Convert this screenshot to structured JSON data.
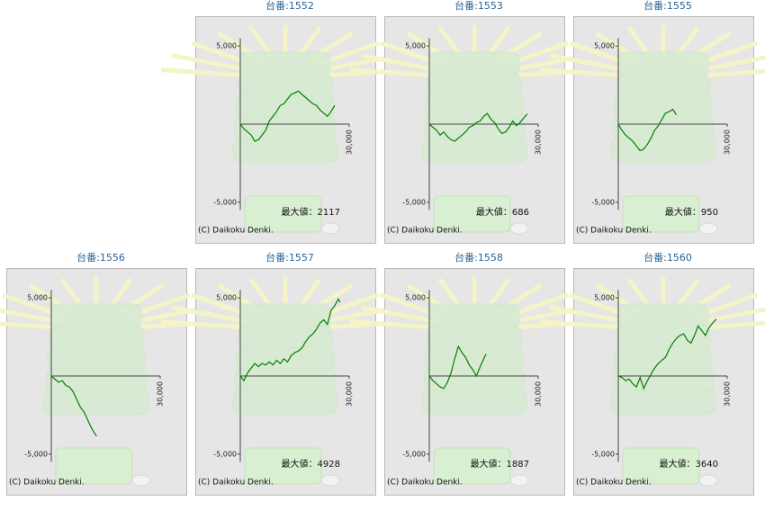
{
  "chart_data": [
    {
      "type": "line",
      "title": "台番:1552",
      "annotation": "最大値：2117",
      "copyright": "(C) Daikoku Denki.",
      "xlim": [
        0,
        30000
      ],
      "xticks": [
        {
          "value": 30000,
          "label": "30,000"
        }
      ],
      "ylim": [
        -5500,
        5500
      ],
      "yticks": [
        {
          "value": 5000,
          "label": "5,000"
        },
        {
          "value": -5000,
          "label": "-5,000"
        }
      ],
      "x": [
        0,
        1000,
        2000,
        3000,
        4000,
        5000,
        6000,
        7000,
        8000,
        9000,
        10000,
        11000,
        12000,
        13000,
        14000,
        15000,
        16000,
        17000,
        18000,
        19000,
        20000,
        21000,
        22000,
        23000,
        24000,
        25000,
        26000
      ],
      "series": [
        {
          "color": "#008000",
          "values": [
            0,
            -300,
            -500,
            -700,
            -1100,
            -1000,
            -700,
            -400,
            200,
            500,
            800,
            1200,
            1300,
            1600,
            1900,
            2000,
            2117,
            1900,
            1700,
            1500,
            1300,
            1200,
            900,
            700,
            500,
            800,
            1200
          ]
        }
      ]
    },
    {
      "type": "line",
      "title": "台番:1553",
      "annotation": "最大値：686",
      "copyright": "(C) Daikoku Denki.",
      "xlim": [
        0,
        30000
      ],
      "xticks": [
        {
          "value": 30000,
          "label": "30,000"
        }
      ],
      "ylim": [
        -5500,
        5500
      ],
      "yticks": [
        {
          "value": 5000,
          "label": "5,000"
        },
        {
          "value": -5000,
          "label": "-5,000"
        }
      ],
      "x": [
        0,
        1000,
        2000,
        3000,
        4000,
        5000,
        6000,
        7000,
        8000,
        9000,
        10000,
        11000,
        12000,
        13000,
        14000,
        15000,
        16000,
        17000,
        18000,
        19000,
        20000,
        21000,
        22000,
        23000,
        24000,
        25000,
        26000,
        27000
      ],
      "series": [
        {
          "color": "#008000",
          "values": [
            0,
            -200,
            -400,
            -700,
            -500,
            -800,
            -1000,
            -1100,
            -900,
            -700,
            -500,
            -200,
            -100,
            100,
            200,
            500,
            686,
            300,
            100,
            -300,
            -600,
            -500,
            -200,
            200,
            -100,
            100,
            400,
            650
          ]
        }
      ]
    },
    {
      "type": "line",
      "title": "台番:1555",
      "annotation": "最大値：950",
      "copyright": "(C) Daikoku Denki.",
      "xlim": [
        0,
        30000
      ],
      "xticks": [
        {
          "value": 30000,
          "label": "30,000"
        }
      ],
      "ylim": [
        -5500,
        5500
      ],
      "yticks": [
        {
          "value": 5000,
          "label": "5,000"
        },
        {
          "value": -5000,
          "label": "-5,000"
        }
      ],
      "x": [
        0,
        1000,
        2000,
        3000,
        4000,
        5000,
        6000,
        7000,
        8000,
        9000,
        10000,
        11000,
        12000,
        13000,
        14000,
        15000,
        16000
      ],
      "series": [
        {
          "color": "#008000",
          "values": [
            0,
            -400,
            -700,
            -900,
            -1100,
            -1400,
            -1700,
            -1600,
            -1300,
            -900,
            -400,
            -100,
            300,
            700,
            800,
            950,
            600
          ]
        }
      ]
    },
    {
      "type": "line",
      "title": "台番:1556",
      "annotation": "",
      "copyright": "(C) Daikoku Denki.",
      "xlim": [
        0,
        30000
      ],
      "xticks": [
        {
          "value": 30000,
          "label": "30,000"
        }
      ],
      "ylim": [
        -5500,
        5500
      ],
      "yticks": [
        {
          "value": 5000,
          "label": "5,000"
        },
        {
          "value": -5000,
          "label": "-5,000"
        }
      ],
      "x": [
        0,
        1000,
        2000,
        3000,
        4000,
        5000,
        6000,
        7000,
        8000,
        9000,
        10000,
        11000,
        12000,
        12500
      ],
      "series": [
        {
          "color": "#008000",
          "values": [
            0,
            -200,
            -400,
            -300,
            -600,
            -700,
            -1000,
            -1500,
            -2000,
            -2300,
            -2800,
            -3300,
            -3700,
            -3850
          ]
        }
      ]
    },
    {
      "type": "line",
      "title": "台番:1557",
      "annotation": "最大値：4928",
      "copyright": "(C) Daikoku Denki.",
      "xlim": [
        0,
        30000
      ],
      "xticks": [
        {
          "value": 30000,
          "label": "30,000"
        }
      ],
      "ylim": [
        -5500,
        5500
      ],
      "yticks": [
        {
          "value": 5000,
          "label": "5,000"
        },
        {
          "value": -5000,
          "label": "-5,000"
        }
      ],
      "x": [
        0,
        1000,
        2000,
        3000,
        4000,
        5000,
        6000,
        7000,
        8000,
        9000,
        10000,
        11000,
        12000,
        13000,
        14000,
        15000,
        16000,
        17000,
        18000,
        19000,
        20000,
        21000,
        22000,
        23000,
        24000,
        25000,
        26000,
        27000,
        27500
      ],
      "series": [
        {
          "color": "#008000",
          "values": [
            0,
            -300,
            200,
            500,
            800,
            600,
            800,
            700,
            900,
            700,
            1000,
            800,
            1100,
            900,
            1300,
            1500,
            1600,
            1800,
            2200,
            2500,
            2700,
            3000,
            3400,
            3600,
            3300,
            4200,
            4500,
            4928,
            4700
          ]
        }
      ]
    },
    {
      "type": "line",
      "title": "台番:1558",
      "annotation": "最大値：1887",
      "copyright": "(C) Daikoku Denki.",
      "xlim": [
        0,
        30000
      ],
      "xticks": [
        {
          "value": 30000,
          "label": "30,000"
        }
      ],
      "ylim": [
        -5500,
        5500
      ],
      "yticks": [
        {
          "value": 5000,
          "label": "5,000"
        },
        {
          "value": -5000,
          "label": "-5,000"
        }
      ],
      "x": [
        0,
        1000,
        2000,
        3000,
        4000,
        5000,
        6000,
        7000,
        8000,
        9000,
        10000,
        11000,
        12000,
        13000,
        14000,
        15000,
        15600
      ],
      "series": [
        {
          "color": "#008000",
          "values": [
            0,
            -300,
            -500,
            -700,
            -800,
            -400,
            200,
            1100,
            1887,
            1500,
            1200,
            700,
            400,
            0,
            600,
            1100,
            1400
          ]
        }
      ]
    },
    {
      "type": "line",
      "title": "台番:1560",
      "annotation": "最大値：3640",
      "copyright": "(C) Daikoku Denki.",
      "xlim": [
        0,
        30000
      ],
      "xticks": [
        {
          "value": 30000,
          "label": "30,000"
        }
      ],
      "ylim": [
        -5500,
        5500
      ],
      "yticks": [
        {
          "value": 5000,
          "label": "5,000"
        },
        {
          "value": -5000,
          "label": "-5,000"
        }
      ],
      "x": [
        0,
        1000,
        2000,
        3000,
        4000,
        5000,
        6000,
        7000,
        8000,
        9000,
        10000,
        11000,
        12000,
        13000,
        14000,
        15000,
        16000,
        17000,
        18000,
        19000,
        20000,
        21000,
        22000,
        23000,
        24000,
        25000,
        26000,
        27000
      ],
      "series": [
        {
          "color": "#008000",
          "values": [
            0,
            -100,
            -300,
            -200,
            -500,
            -700,
            -100,
            -800,
            -300,
            100,
            500,
            800,
            1000,
            1200,
            1700,
            2100,
            2400,
            2600,
            2700,
            2300,
            2100,
            2600,
            3200,
            2900,
            2600,
            3100,
            3400,
            3640
          ]
        }
      ]
    }
  ]
}
